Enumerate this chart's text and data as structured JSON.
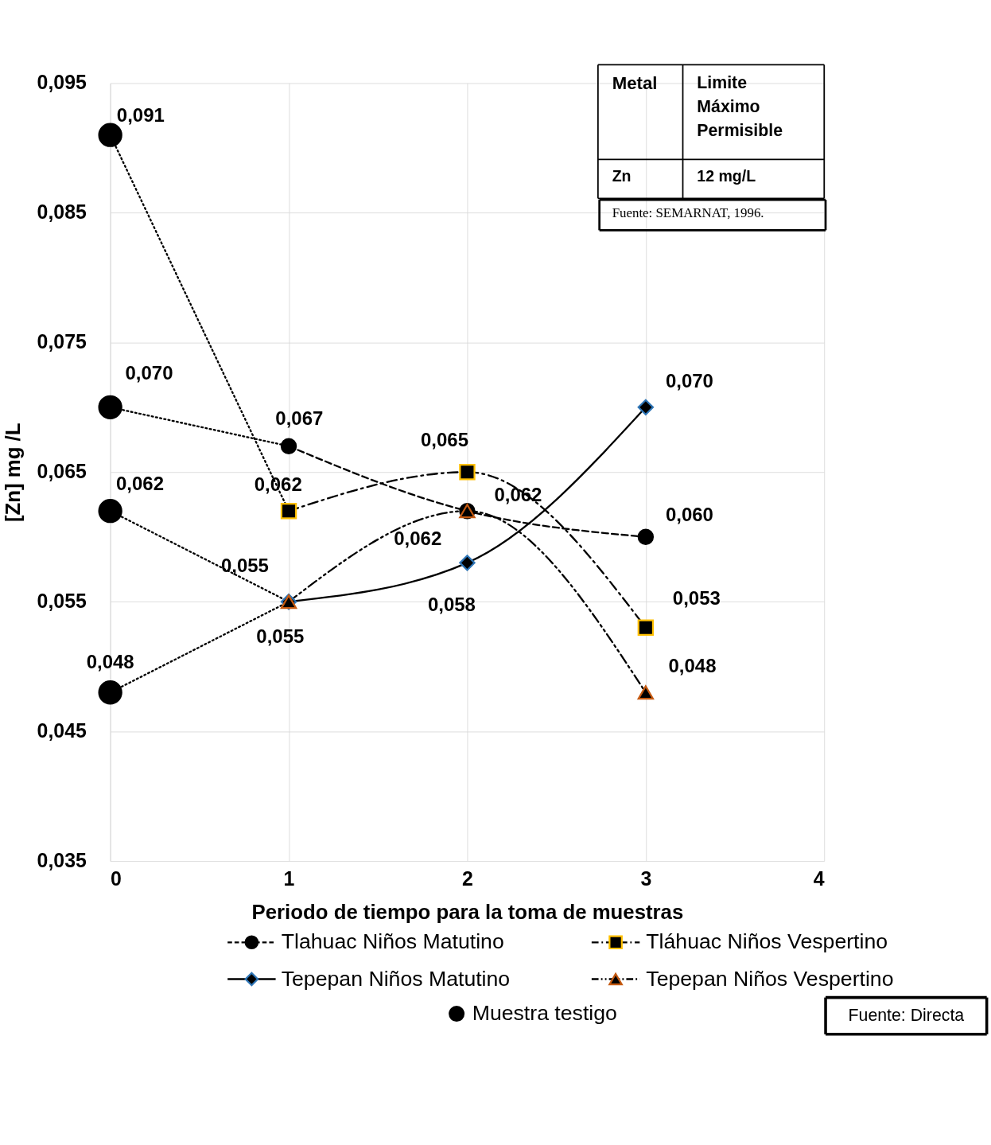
{
  "chart_data": {
    "type": "line",
    "xlabel": "Periodo de tiempo para la toma de muestras",
    "ylabel": "[Zn] mg /L",
    "xlim": [
      0,
      4
    ],
    "xticks": [
      0,
      1,
      2,
      3,
      4
    ],
    "ylim": [
      0.035,
      0.095
    ],
    "yticks": [
      {
        "value": 0.035,
        "label": "0,035"
      },
      {
        "value": 0.045,
        "label": "0,045"
      },
      {
        "value": 0.055,
        "label": "0,055"
      },
      {
        "value": 0.065,
        "label": "0,065"
      },
      {
        "value": 0.075,
        "label": "0,075"
      },
      {
        "value": 0.085,
        "label": "0,085"
      },
      {
        "value": 0.095,
        "label": "0,095"
      }
    ],
    "grid": true,
    "legend": "bottom",
    "series": [
      {
        "name": "Tlahuac Niños Matutino",
        "type": "line",
        "x": [
          1,
          2,
          3
        ],
        "values": [
          0.067,
          0.062,
          0.06
        ],
        "value_labels": [
          "0,067",
          "0,062",
          "0,060"
        ],
        "color": "#000000",
        "marker": "circle",
        "line_style": "dashed"
      },
      {
        "name": "Tláhuac Niños Vespertino",
        "type": "line",
        "x": [
          1,
          2,
          3
        ],
        "values": [
          0.062,
          0.065,
          0.053
        ],
        "value_labels": [
          "0,062",
          "0,065",
          "0,053"
        ],
        "color": "#ffc000",
        "marker": "square",
        "line_style": "dashdot"
      },
      {
        "name": "Tepepan Niños Matutino",
        "type": "line",
        "x": [
          1,
          2,
          3
        ],
        "values": [
          0.055,
          0.058,
          0.07
        ],
        "value_labels": [
          "0,055",
          "0,058",
          "0,070"
        ],
        "color": "#2e75b6",
        "marker": "diamond",
        "line_style": "solid"
      },
      {
        "name": "Tepepan Niños Vespertino",
        "type": "line",
        "x": [
          1,
          2,
          3
        ],
        "values": [
          0.055,
          0.062,
          0.048
        ],
        "value_labels": [
          "0,055",
          "0,062",
          "0,048"
        ],
        "color": "#c55a11",
        "marker": "triangle",
        "line_style": "dashdotdot"
      },
      {
        "name": "Muestra testigo",
        "type": "scatter",
        "x": [
          0,
          0,
          0,
          0
        ],
        "values": [
          0.091,
          0.07,
          0.062,
          0.048
        ],
        "value_labels": [
          "0,091",
          "0,070",
          "0,062",
          "0,048"
        ],
        "color": "#000000",
        "marker": "circle"
      },
      {
        "x": [
          0,
          1
        ],
        "values": [
          0.091,
          0.062
        ],
        "marker": "none",
        "line_style": "dotted"
      },
      {
        "x": [
          0,
          1
        ],
        "values": [
          0.07,
          0.067
        ],
        "marker": "none",
        "line_style": "dotted"
      },
      {
        "x": [
          0,
          1
        ],
        "values": [
          0.062,
          0.055
        ],
        "marker": "none",
        "line_style": "dotted"
      },
      {
        "x": [
          0,
          1
        ],
        "values": [
          0.048,
          0.055
        ],
        "marker": "none",
        "line_style": "dotted"
      }
    ],
    "annotations": [
      "Metal",
      "Limite Máximo Permisible",
      "Zn",
      "12 mg/L",
      "Fuente: SEMARNAT, 1996.",
      "Fuente: Directa"
    ]
  }
}
